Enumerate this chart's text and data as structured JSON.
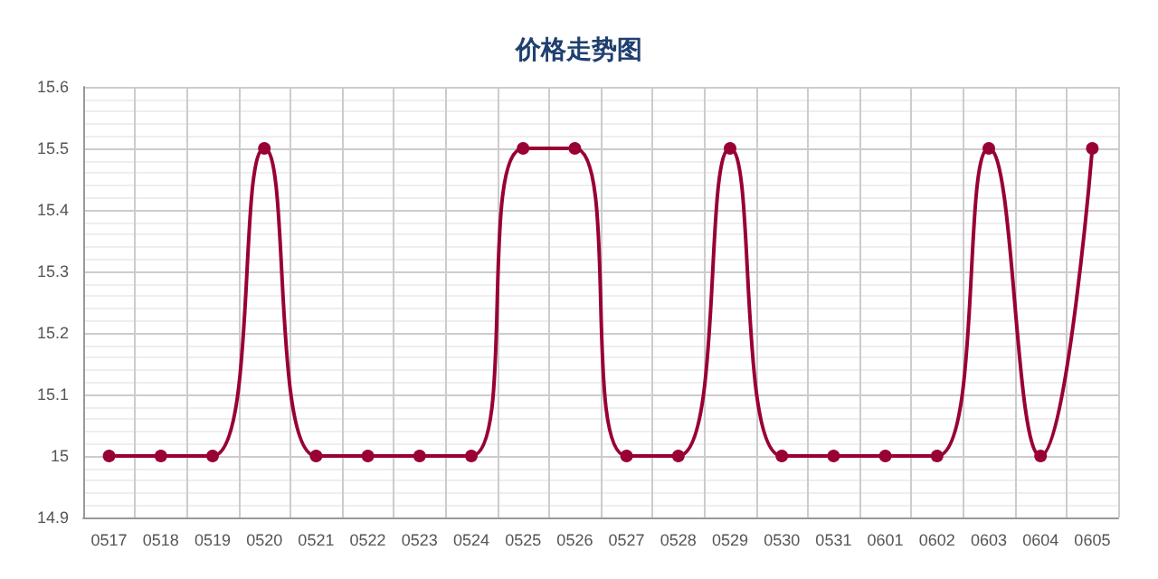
{
  "chart_data": {
    "type": "line",
    "title": "价格走势图",
    "categories": [
      "0517",
      "0518",
      "0519",
      "0520",
      "0521",
      "0522",
      "0523",
      "0524",
      "0525",
      "0526",
      "0527",
      "0528",
      "0529",
      "0530",
      "0531",
      "0601",
      "0602",
      "0603",
      "0604",
      "0605"
    ],
    "series": [
      {
        "color": "#990033",
        "values": [
          15,
          15,
          15,
          15.5,
          15,
          15,
          15,
          15,
          15.5,
          15.5,
          15,
          15,
          15.5,
          15,
          15,
          15,
          15,
          15.5,
          15,
          15.5
        ]
      }
    ],
    "ylim": [
      14.9,
      15.6
    ],
    "yticks": [
      14.9,
      15,
      15.1,
      15.2,
      15.3,
      15.4,
      15.5,
      15.6
    ],
    "grid": true,
    "marker": "circle",
    "line_style": "solid"
  }
}
